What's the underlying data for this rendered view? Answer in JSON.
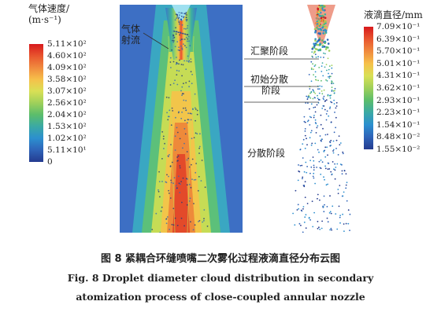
{
  "velocity_colorbar": {
    "title_line1": "气体速度/",
    "title_line2": "(m·s⁻¹)",
    "labels": [
      "5.11×10²",
      "4.60×10²",
      "4.09×10²",
      "3.58×10²",
      "3.07×10²",
      "2.56×10²",
      "2.04×10²",
      "1.53×10²",
      "1.02×10²",
      "5.11×10¹",
      "0"
    ],
    "colors": [
      "#d7191c",
      "#e8552e",
      "#f08a3e",
      "#f6c04a",
      "#d9e055",
      "#9fd05a",
      "#5bbd6b",
      "#3aa9a5",
      "#2c8fcf",
      "#2e63b8",
      "#243b8f"
    ]
  },
  "diameter_colorbar": {
    "title": "液滴直径/mm",
    "labels": [
      "7.09×10⁻¹",
      "6.39×10⁻¹",
      "5.70×10⁻¹",
      "5.01×10⁻¹",
      "4.31×10⁻¹",
      "3.62×10⁻¹",
      "2.93×10⁻¹",
      "2.23×10⁻¹",
      "1.54×10⁻¹",
      "8.48×10⁻²",
      "1.55×10⁻²"
    ],
    "colors": [
      "#d7191c",
      "#e8552e",
      "#f08a3e",
      "#f6c04a",
      "#d9e055",
      "#9fd05a",
      "#5bbd6b",
      "#3aa9a5",
      "#2c8fcf",
      "#2e63b8",
      "#243b8f"
    ]
  },
  "annotations": {
    "gas_jet_line1": "气体",
    "gas_jet_line2": "射流",
    "converge_stage": "汇聚阶段",
    "initial_disperse_line1": "初始分散",
    "initial_disperse_line2": "阶段",
    "disperse_stage": "分散阶段"
  },
  "caption": {
    "cn": "图 8   紧耦合环缝喷嘴二次雾化过程液滴直径分布云图",
    "en_line1": "Fig. 8   Droplet diameter cloud distribution in secondary",
    "en_line2": "atomization process of close-coupled annular nozzle"
  }
}
